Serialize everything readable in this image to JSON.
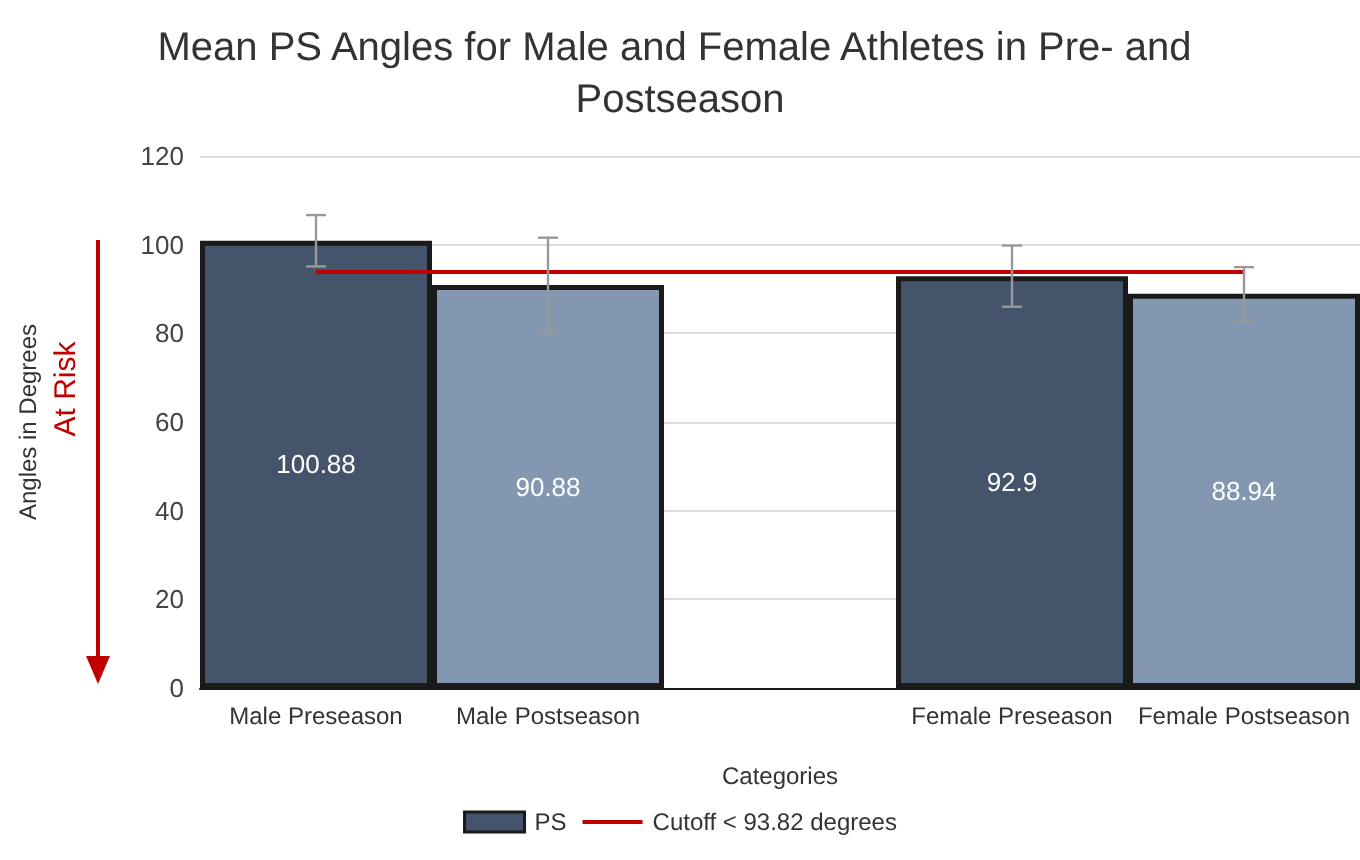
{
  "chart_data": {
    "type": "bar",
    "title": "Mean PS Angles for Male and Female Athletes in Pre- and Postseason",
    "xlabel": "Categories",
    "ylabel": "Angles in Degrees",
    "categories": [
      "Male Preseason",
      "Male Postseason",
      null,
      "Female Preseason",
      "Female Postseason"
    ],
    "series": [
      {
        "name": "PS",
        "color": "#44546a",
        "colors": [
          "#44546a",
          "#8497b0",
          null,
          "#44546a",
          "#8497b0"
        ],
        "values": [
          100.88,
          90.88,
          null,
          92.9,
          88.94
        ],
        "errors": [
          5.8,
          10.7,
          null,
          6.9,
          6
        ]
      }
    ],
    "data_labels": true,
    "ylim": [
      0,
      120
    ],
    "yticks": [
      0,
      20,
      40,
      60,
      80,
      100,
      120
    ],
    "grid": "y",
    "legend": "bottom",
    "ref_lines": [
      {
        "axis": "y",
        "value": 93.82,
        "label": "Cutoff < 93.82 degrees",
        "color": "#c00000"
      }
    ],
    "annotations": [
      "At Risk"
    ]
  }
}
